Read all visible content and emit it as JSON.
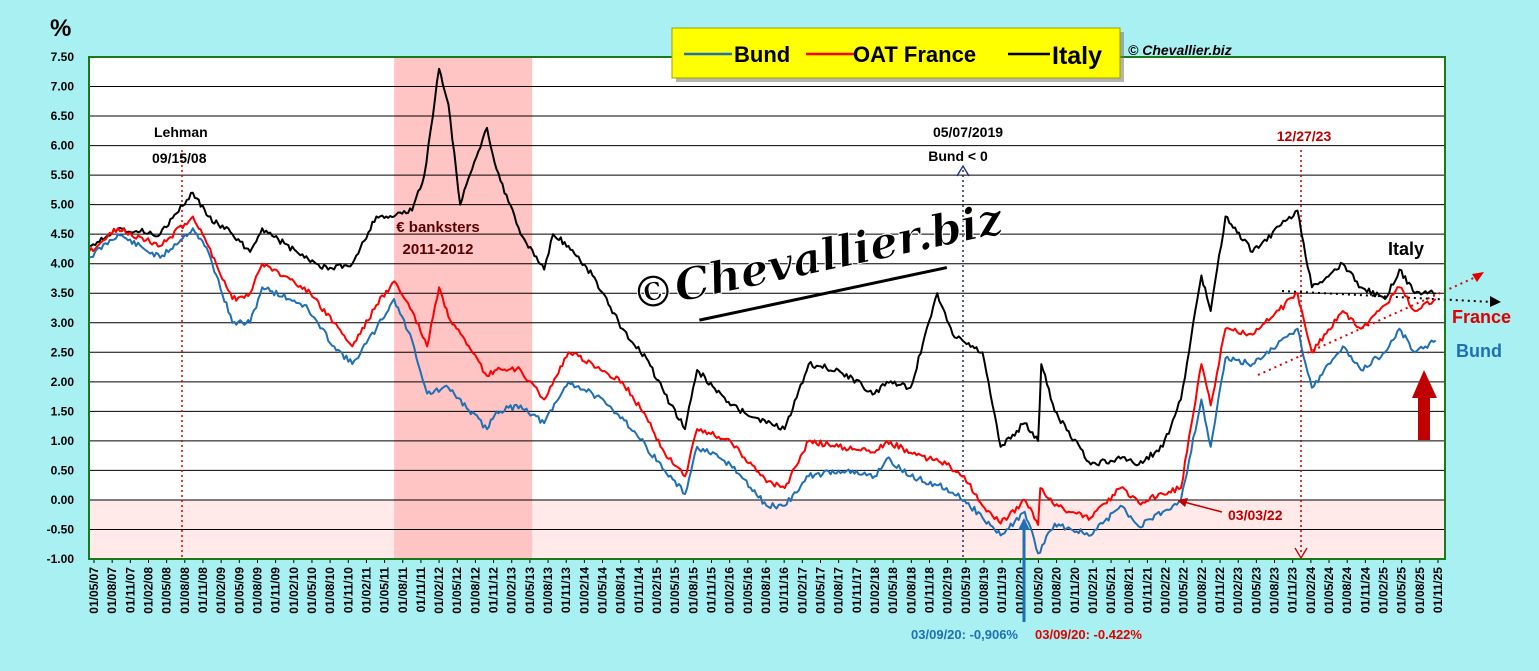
{
  "chart_data": {
    "type": "line",
    "ylabel": "%",
    "ylim": [
      -1.0,
      7.5
    ],
    "xlim": [
      "2007-01-05",
      "2025-11-01"
    ],
    "grid": true,
    "legend_placement": "top-center",
    "yticks": [
      "-1.00",
      "-0.50",
      "0.00",
      "0.50",
      "1.00",
      "1.50",
      "2.00",
      "2.50",
      "3.00",
      "3.50",
      "4.00",
      "4.50",
      "5.00",
      "5.50",
      "6.00",
      "6.50",
      "7.00",
      "7.50"
    ],
    "xticks": [
      "01/05/07",
      "01/08/07",
      "01/11/07",
      "01/02/08",
      "01/05/08",
      "01/08/08",
      "01/11/08",
      "01/02/09",
      "01/05/09",
      "01/08/09",
      "01/11/09",
      "01/02/10",
      "01/05/10",
      "01/08/10",
      "01/11/10",
      "01/02/11",
      "01/05/11",
      "01/08/11",
      "01/11/11",
      "01/02/12",
      "01/05/12",
      "01/08/12",
      "01/11/12",
      "01/02/13",
      "01/05/13",
      "01/08/13",
      "01/11/13",
      "01/02/14",
      "01/05/14",
      "01/08/14",
      "01/11/14",
      "01/02/15",
      "01/05/15",
      "01/08/15",
      "01/11/15",
      "01/02/16",
      "01/05/16",
      "01/08/16",
      "01/11/16",
      "01/02/17",
      "01/05/17",
      "01/08/17",
      "01/11/17",
      "01/02/18",
      "01/05/18",
      "01/08/18",
      "01/11/18",
      "01/02/19",
      "01/05/19",
      "01/08/19",
      "01/11/19",
      "01/02/20",
      "01/05/20",
      "01/08/20",
      "01/11/20",
      "01/02/21",
      "01/05/21",
      "01/08/21",
      "01/11/21",
      "01/02/22",
      "01/05/22",
      "01/08/22",
      "01/11/22",
      "01/02/23",
      "01/05/23",
      "01/08/23",
      "01/11/23",
      "01/02/24",
      "01/05/24",
      "01/08/24",
      "01/11/24",
      "01/02/25",
      "01/05/25",
      "01/08/25",
      "01/11/25"
    ],
    "legend": [
      "Bund",
      "OAT France",
      "Italy"
    ],
    "copyright": "© Chevallier.biz",
    "watermark": "©Chevallier.biz",
    "colors": {
      "Bund": "#1f6fb5",
      "OAT France": "#ff0000",
      "Italy": "#000000",
      "band": "#ffc4c4",
      "negative_zone": "#ffe9e9",
      "plot_bg": "#ffffff",
      "legend_bg": "#ffff00",
      "arrow": "#c00000"
    },
    "shaded_periods": [
      {
        "from": "2011-04-01",
        "to": "2013-03-01"
      }
    ],
    "negative_zone": [
      -1.0,
      0.0
    ],
    "series": [
      {
        "name": "Bund",
        "x": [
          "2007-01-05",
          "2007-06-01",
          "2008-01-01",
          "2008-06-15",
          "2008-09-01",
          "2009-01-01",
          "2009-04-01",
          "2009-06-01",
          "2010-01-01",
          "2010-06-01",
          "2010-09-01",
          "2011-01-01",
          "2011-04-01",
          "2011-07-01",
          "2011-09-15",
          "2012-01-01",
          "2012-07-15",
          "2012-09-01",
          "2013-01-01",
          "2013-05-01",
          "2013-09-01",
          "2014-01-01",
          "2014-06-01",
          "2014-10-01",
          "2015-01-01",
          "2015-04-15",
          "2015-06-15",
          "2015-12-01",
          "2016-06-01",
          "2016-09-01",
          "2017-01-01",
          "2017-06-01",
          "2017-12-01",
          "2018-02-01",
          "2018-06-01",
          "2018-12-01",
          "2019-03-01",
          "2019-06-01",
          "2019-09-01",
          "2020-01-01",
          "2020-03-09",
          "2020-06-01",
          "2020-12-01",
          "2021-05-01",
          "2021-08-01",
          "2021-12-01",
          "2022-03-03",
          "2022-06-15",
          "2022-08-01",
          "2022-10-15",
          "2023-03-01",
          "2023-10-15",
          "2023-12-27",
          "2024-06-01",
          "2024-09-01",
          "2025-01-01",
          "2025-03-15",
          "2025-06-01",
          "2025-09-15"
        ],
        "values": [
          4.1,
          4.5,
          4.1,
          4.6,
          4.2,
          3.0,
          3.0,
          3.6,
          3.3,
          2.6,
          2.3,
          2.9,
          3.4,
          2.7,
          1.8,
          1.9,
          1.2,
          1.5,
          1.6,
          1.3,
          2.0,
          1.8,
          1.4,
          0.9,
          0.5,
          0.1,
          0.9,
          0.6,
          -0.1,
          -0.1,
          0.4,
          0.5,
          0.4,
          0.7,
          0.4,
          0.2,
          0.0,
          -0.3,
          -0.6,
          -0.2,
          -0.906,
          -0.4,
          -0.6,
          -0.1,
          -0.45,
          -0.2,
          0.0,
          1.7,
          0.9,
          2.4,
          2.3,
          2.9,
          1.9,
          2.6,
          2.2,
          2.5,
          2.9,
          2.5,
          2.7
        ]
      },
      {
        "name": "OAT France",
        "x": [
          "2007-01-05",
          "2007-06-01",
          "2008-01-01",
          "2008-06-15",
          "2008-09-01",
          "2009-01-01",
          "2009-04-01",
          "2009-06-01",
          "2010-01-01",
          "2010-06-01",
          "2010-09-01",
          "2011-01-01",
          "2011-04-01",
          "2011-07-01",
          "2011-09-15",
          "2011-11-15",
          "2012-01-01",
          "2012-07-15",
          "2012-09-01",
          "2013-01-01",
          "2013-05-01",
          "2013-09-01",
          "2014-01-01",
          "2014-06-01",
          "2014-10-01",
          "2015-01-01",
          "2015-04-15",
          "2015-06-15",
          "2015-12-01",
          "2016-06-01",
          "2016-09-01",
          "2017-01-01",
          "2017-06-01",
          "2017-12-01",
          "2018-02-01",
          "2018-06-01",
          "2018-12-01",
          "2019-03-01",
          "2019-06-01",
          "2019-09-01",
          "2020-01-01",
          "2020-03-09",
          "2020-03-20",
          "2020-06-01",
          "2020-12-01",
          "2021-05-01",
          "2021-08-01",
          "2021-12-01",
          "2022-03-03",
          "2022-06-15",
          "2022-08-01",
          "2022-10-15",
          "2023-03-01",
          "2023-10-15",
          "2023-12-27",
          "2024-06-01",
          "2024-09-01",
          "2025-01-01",
          "2025-03-15",
          "2025-06-01",
          "2025-09-15"
        ],
        "values": [
          4.2,
          4.6,
          4.3,
          4.8,
          4.3,
          3.4,
          3.5,
          4.0,
          3.6,
          3.0,
          2.6,
          3.3,
          3.7,
          3.2,
          2.6,
          3.6,
          3.1,
          2.1,
          2.2,
          2.2,
          1.7,
          2.5,
          2.3,
          2.0,
          1.4,
          0.8,
          0.4,
          1.2,
          1.0,
          0.3,
          0.2,
          1.0,
          0.9,
          0.8,
          1.0,
          0.8,
          0.6,
          0.4,
          -0.1,
          -0.4,
          0.0,
          -0.422,
          0.2,
          -0.1,
          -0.3,
          0.2,
          -0.05,
          0.1,
          0.2,
          2.3,
          1.6,
          2.9,
          2.8,
          3.5,
          2.5,
          3.2,
          2.9,
          3.3,
          3.6,
          3.2,
          3.4
        ]
      },
      {
        "name": "Italy",
        "x": [
          "2007-01-05",
          "2007-06-01",
          "2008-01-01",
          "2008-06-15",
          "2008-09-01",
          "2009-01-01",
          "2009-04-01",
          "2009-06-01",
          "2010-01-01",
          "2010-05-01",
          "2010-09-01",
          "2011-01-01",
          "2011-04-01",
          "2011-07-01",
          "2011-09-01",
          "2011-11-15",
          "2012-01-01",
          "2012-03-01",
          "2012-06-01",
          "2012-07-15",
          "2012-09-01",
          "2013-01-01",
          "2013-05-01",
          "2013-06-15",
          "2013-09-01",
          "2014-01-01",
          "2014-06-01",
          "2014-10-01",
          "2015-01-01",
          "2015-04-15",
          "2015-06-15",
          "2015-12-01",
          "2016-06-01",
          "2016-09-01",
          "2017-01-01",
          "2017-06-01",
          "2017-12-01",
          "2018-02-01",
          "2018-06-01",
          "2018-10-15",
          "2019-01-01",
          "2019-06-01",
          "2019-09-01",
          "2020-01-01",
          "2020-03-09",
          "2020-03-25",
          "2020-06-01",
          "2020-12-01",
          "2021-05-01",
          "2021-08-01",
          "2021-12-01",
          "2022-03-03",
          "2022-06-15",
          "2022-08-01",
          "2022-10-15",
          "2023-03-01",
          "2023-10-15",
          "2023-12-27",
          "2024-06-01",
          "2024-09-01",
          "2025-01-01",
          "2025-03-15",
          "2025-06-01",
          "2025-09-15"
        ],
        "values": [
          4.3,
          4.6,
          4.5,
          5.2,
          4.8,
          4.5,
          4.2,
          4.6,
          4.1,
          3.9,
          4.0,
          4.8,
          4.8,
          4.9,
          5.5,
          7.3,
          6.7,
          5.0,
          5.9,
          6.3,
          5.6,
          4.5,
          3.9,
          4.5,
          4.3,
          3.8,
          2.9,
          2.4,
          1.8,
          1.2,
          2.2,
          1.6,
          1.3,
          1.2,
          2.3,
          2.2,
          1.8,
          2.0,
          1.9,
          3.5,
          2.8,
          2.5,
          0.9,
          1.3,
          1.0,
          2.3,
          1.5,
          0.6,
          0.7,
          0.6,
          0.9,
          1.7,
          3.8,
          3.2,
          4.8,
          4.2,
          4.9,
          3.6,
          4.0,
          3.6,
          3.4,
          3.9,
          3.5,
          3.5
        ]
      }
    ],
    "annotations": {
      "lehman": {
        "title": "Lehman",
        "date": "09/15/08"
      },
      "banksters": {
        "line1": "€ banksters",
        "line2": "2011-2012"
      },
      "bund_negative": {
        "date": "05/07/2019",
        "text": "Bund < 0"
      },
      "dec2023": "12/27/23",
      "mar2022": "03/03/22",
      "bund_min": "03/09/20: -0,906%",
      "oat_min": "03/09/20:  -0.422%",
      "italy_label": "Italy",
      "france_label": "France",
      "bund_label": "Bund"
    }
  }
}
